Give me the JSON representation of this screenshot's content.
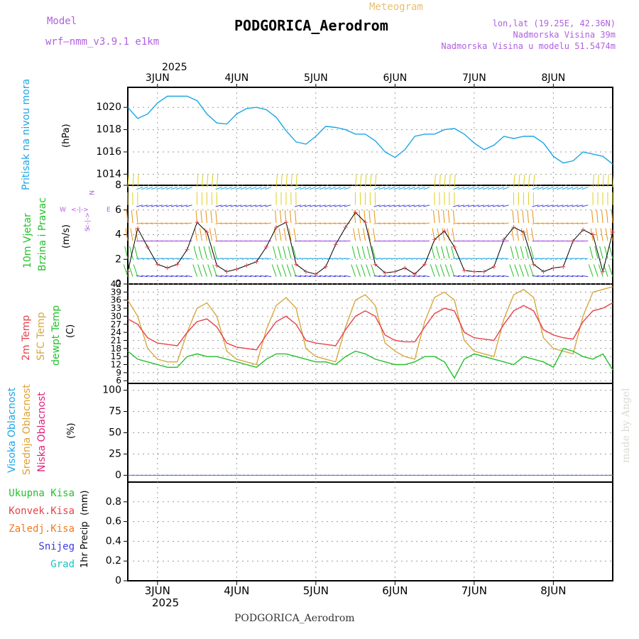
{
  "header": {
    "model_label": "Model",
    "model_name": "wrf–nmm_v3.9.1 e1km",
    "meteogram_label": "Meteogram",
    "station": "PODGORICA_Aerodrom",
    "coords": "lon,lat (19.25E, 42.36N)",
    "altitude": "Nadmorska Visina 39m",
    "model_altitude": "Nadmorska Visina u modelu 51.5474m",
    "footer_station": "PODGORICA_Aerodrom",
    "watermark": "made by Angel"
  },
  "colors": {
    "pressure": "#1ca6e6",
    "temp2m": "#e8414a",
    "sfc_temp": "#d8a840",
    "dewpoint": "#22c22a",
    "high_cloud": "#1ca6e6",
    "mid_cloud": "#e0a030",
    "low_cloud": "#e0207a",
    "total_precip": "#22c22a",
    "conv_precip": "#e8414a",
    "frozen_precip": "#f07a20",
    "snow": "#3c3ce0",
    "hail": "#20c0c0",
    "wind_label": "#22c22a",
    "axis": "#000000",
    "grid": "#9a9a9a",
    "header_purple": "#b060e0",
    "header_gold": "#e8c070"
  },
  "chart_data": [
    {
      "type": "line",
      "panel": "pressure",
      "ylabel": "Pritisak na nivou mora",
      "unit": "(hPa)",
      "ylim": [
        1013,
        1021.8
      ],
      "yticks": [
        1014,
        1016,
        1018,
        1020
      ],
      "grid": true,
      "x_day_labels": [
        "3JUN",
        "4JUN",
        "5JUN",
        "6JUN",
        "7JUN",
        "8JUN"
      ],
      "year_label": "2025",
      "x": [
        0,
        3,
        6,
        9,
        12,
        15,
        18,
        21,
        24,
        27,
        30,
        33,
        36,
        39,
        42,
        45,
        48,
        51,
        54,
        57,
        60,
        63,
        66,
        69,
        72,
        75,
        78,
        81,
        84,
        87,
        90,
        93,
        96,
        99,
        102,
        105,
        108,
        111,
        114,
        117,
        120,
        123,
        126,
        129,
        132,
        135,
        138,
        141,
        144,
        147
      ],
      "series": [
        {
          "values": [
            1020.0,
            1019.0,
            1019.4,
            1020.4,
            1021.0,
            1021.0,
            1021.0,
            1020.6,
            1019.4,
            1018.6,
            1018.5,
            1019.4,
            1019.9,
            1020.0,
            1019.8,
            1019.1,
            1017.9,
            1016.9,
            1016.7,
            1017.4,
            1018.3,
            1018.2,
            1018.0,
            1017.6,
            1017.6,
            1017.0,
            1016.0,
            1015.5,
            1016.2,
            1017.4,
            1017.6,
            1017.6,
            1018.0,
            1018.1,
            1017.6,
            1016.8,
            1016.2,
            1016.6,
            1017.4,
            1017.2,
            1017.4,
            1017.4,
            1016.8,
            1015.6,
            1015.0,
            1015.2,
            1016.0,
            1015.8,
            1015.6,
            1014.9
          ]
        }
      ]
    },
    {
      "type": "line",
      "panel": "wind",
      "ylabel_lines": [
        "10m Vjetar",
        "Brzina i Pravac"
      ],
      "unit": "(m/s)",
      "compass": [
        "W",
        "E",
        "N",
        "S"
      ],
      "ylim": [
        0,
        8
      ],
      "yticks": [
        0,
        2,
        4,
        6,
        8
      ],
      "grid": true,
      "x": [
        0,
        3,
        6,
        9,
        12,
        15,
        18,
        21,
        24,
        27,
        30,
        33,
        36,
        39,
        42,
        45,
        48,
        51,
        54,
        57,
        60,
        63,
        66,
        69,
        72,
        75,
        78,
        81,
        84,
        87,
        90,
        93,
        96,
        99,
        102,
        105,
        108,
        111,
        114,
        117,
        120,
        123,
        126,
        129,
        132,
        135,
        138,
        141,
        144,
        147
      ],
      "series": [
        {
          "name": "speed",
          "values": [
            1.0,
            4.5,
            3.0,
            1.6,
            1.3,
            1.6,
            2.8,
            5.0,
            4.2,
            1.5,
            1.0,
            1.2,
            1.5,
            1.8,
            3.0,
            4.6,
            5.0,
            1.6,
            1.0,
            0.8,
            1.4,
            3.2,
            4.6,
            5.8,
            5.0,
            1.6,
            0.9,
            1.0,
            1.3,
            0.8,
            1.6,
            3.6,
            4.3,
            3.0,
            1.1,
            1.0,
            1.0,
            1.4,
            3.6,
            4.6,
            4.2,
            1.6,
            1.0,
            1.3,
            1.4,
            3.5,
            4.4,
            4.0,
            1.0,
            4.2
          ]
        }
      ]
    },
    {
      "type": "line",
      "panel": "temperature",
      "ylabel_lines": [
        "2m Temp",
        "SFC Temp",
        "dewpt Temp"
      ],
      "unit": "(C)",
      "ylim": [
        5,
        42
      ],
      "yticks": [
        6,
        9,
        12,
        15,
        18,
        21,
        24,
        27,
        30,
        33,
        36,
        39,
        42
      ],
      "grid": true,
      "x": [
        0,
        3,
        6,
        9,
        12,
        15,
        18,
        21,
        24,
        27,
        30,
        33,
        36,
        39,
        42,
        45,
        48,
        51,
        54,
        57,
        60,
        63,
        66,
        69,
        72,
        75,
        78,
        81,
        84,
        87,
        90,
        93,
        96,
        99,
        102,
        105,
        108,
        111,
        114,
        117,
        120,
        123,
        126,
        129,
        132,
        135,
        138,
        141,
        144,
        147
      ],
      "series": [
        {
          "name": "2m Temp",
          "values": [
            29,
            27,
            22,
            20,
            19.5,
            19,
            24,
            28,
            29,
            26,
            20,
            18.5,
            18,
            17.5,
            23,
            28,
            30,
            27,
            21,
            20,
            19.5,
            19,
            25,
            30,
            32,
            30,
            23,
            21,
            20.5,
            20.5,
            26,
            31,
            33,
            32,
            24,
            22,
            21.5,
            21,
            27,
            32,
            34,
            32,
            25,
            23,
            22,
            21.5,
            28,
            32,
            33,
            35
          ]
        },
        {
          "name": "SFC Temp",
          "values": [
            36,
            30,
            18,
            14,
            13,
            13,
            24,
            33,
            35,
            30,
            17,
            14,
            13,
            12,
            25,
            34,
            37,
            33,
            18,
            15,
            14,
            13,
            26,
            36,
            38,
            34,
            20,
            17,
            15,
            14,
            28,
            37,
            39,
            36,
            21,
            17,
            16,
            15,
            29,
            38,
            40,
            37,
            22,
            18,
            17,
            16,
            30,
            39,
            40,
            41
          ]
        },
        {
          "name": "dewpt Temp",
          "values": [
            17,
            14,
            13,
            12,
            11,
            11,
            15,
            16,
            15,
            15,
            14,
            13,
            12,
            11,
            14,
            16,
            16,
            15,
            14,
            13,
            13,
            12,
            15,
            17,
            16,
            14,
            13,
            12,
            12,
            13,
            15,
            15,
            13,
            7,
            14,
            16,
            15,
            14,
            13,
            12,
            15,
            14,
            13,
            11,
            18,
            17,
            15,
            14,
            16,
            10
          ]
        }
      ]
    },
    {
      "type": "line",
      "panel": "cloud",
      "ylabel_lines": [
        "Visoka Oblacnost",
        "Srednja Oblacnost",
        "Niska Oblacnost"
      ],
      "unit": "(%)",
      "ylim": [
        -8,
        108
      ],
      "yticks": [
        0,
        25,
        50,
        75,
        100
      ],
      "grid": true,
      "series": [
        {
          "name": "Visoka Oblacnost",
          "values": [
            0,
            0
          ]
        },
        {
          "name": "Srednja Oblacnost",
          "values": [
            0,
            0
          ]
        },
        {
          "name": "Niska Oblacnost",
          "values": [
            0,
            0
          ]
        }
      ]
    },
    {
      "type": "line",
      "panel": "precip",
      "ylabel": "1hr Precip",
      "unit": "(mm)",
      "legend": [
        "Ukupna Kisa",
        "Konvek.Kisa",
        "Zaledj.Kisa",
        "Snijeg",
        "Grad"
      ],
      "ylim": [
        0,
        1.0
      ],
      "yticks": [
        0,
        0.2,
        0.4,
        0.6,
        0.8
      ],
      "ytick_labels": [
        "0",
        "0.2",
        "0.4",
        "0.6",
        "0.8"
      ],
      "grid": true,
      "x_day_labels": [
        "3JUN",
        "4JUN",
        "5JUN",
        "6JUN",
        "7JUN",
        "8JUN"
      ],
      "year_label": "2025",
      "series": [
        {
          "name": "Ukupna Kisa",
          "values": [
            0,
            0
          ]
        }
      ]
    }
  ]
}
